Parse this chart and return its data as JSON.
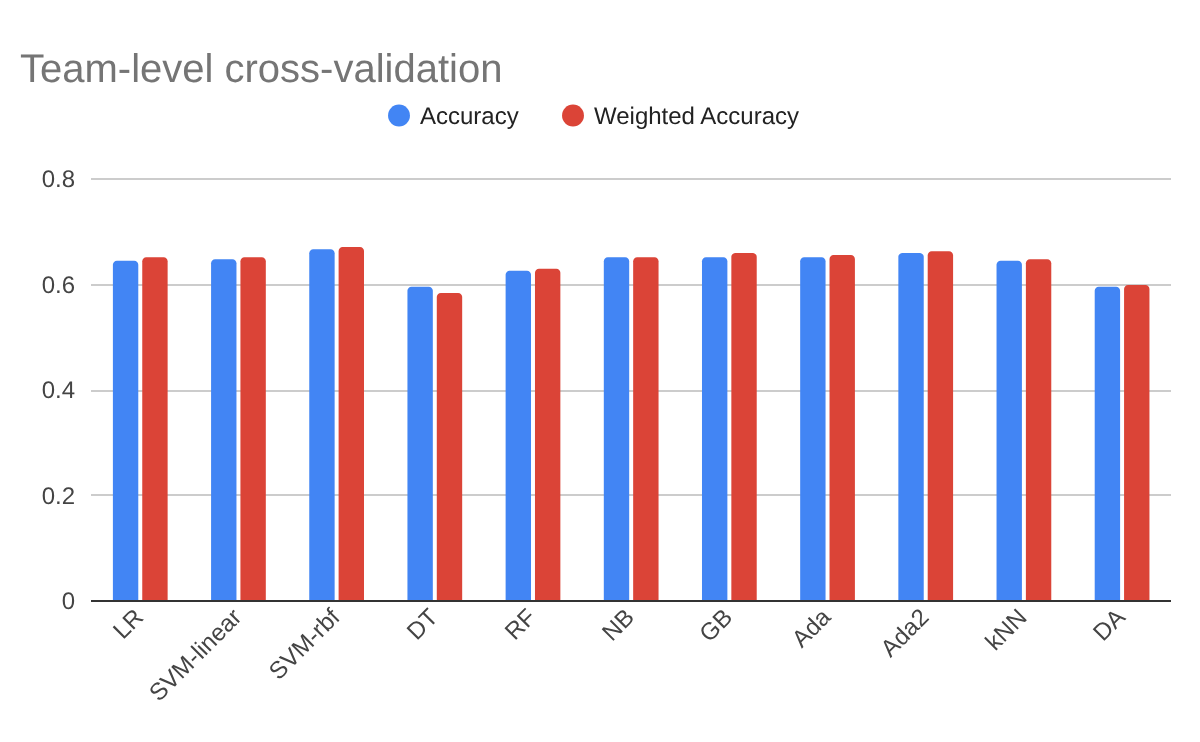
{
  "chart_data": {
    "type": "bar",
    "title": "Team-level cross-validation",
    "categories": [
      "LR",
      "SVM-linear",
      "SVM-rbf",
      "DT",
      "RF",
      "NB",
      "GB",
      "Ada",
      "Ada2",
      "kNN",
      "DA"
    ],
    "series": [
      {
        "name": "Accuracy",
        "color": "#4285f4",
        "values": [
          0.643,
          0.646,
          0.665,
          0.594,
          0.624,
          0.65,
          0.65,
          0.65,
          0.658,
          0.643,
          0.594
        ]
      },
      {
        "name": "Weighted Accuracy",
        "color": "#db4437",
        "values": [
          0.65,
          0.65,
          0.669,
          0.582,
          0.628,
          0.65,
          0.658,
          0.654,
          0.661,
          0.646,
          0.597
        ]
      }
    ],
    "ylim": [
      0,
      0.8
    ],
    "yticks": [
      {
        "value": 0,
        "label": "0"
      },
      0.2,
      0.4,
      0.6,
      0.8
    ],
    "grid": "y",
    "legend": "top"
  }
}
